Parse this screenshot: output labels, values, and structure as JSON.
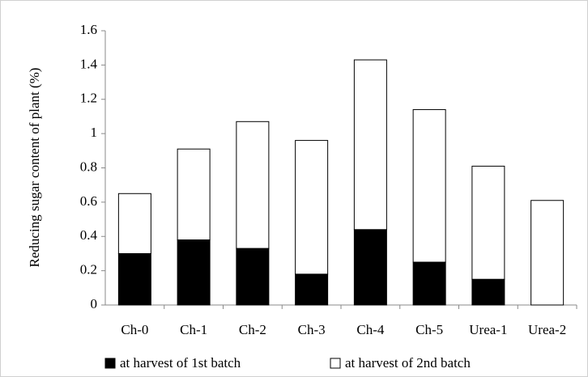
{
  "chart_data": {
    "type": "stacked_bar",
    "y_axis_label": "Reducing sugar content of plant (%)",
    "categories": [
      "Ch-0",
      "Ch-1",
      "Ch-2",
      "Ch-3",
      "Ch-4",
      "Ch-5",
      "Urea-1",
      "Urea-2"
    ],
    "series": [
      {
        "name": "at harvest of 1st batch",
        "color": "#000000",
        "values": [
          0.3,
          0.38,
          0.33,
          0.18,
          0.44,
          0.25,
          0.15,
          0
        ]
      },
      {
        "name": "at harvest of 2nd batch",
        "color": "#ffffff",
        "values": [
          0.35,
          0.53,
          0.74,
          0.78,
          0.99,
          0.89,
          0.66,
          0.61
        ]
      }
    ],
    "ylim": [
      0,
      1.6
    ],
    "yticks": [
      0,
      0.2,
      0.4,
      0.6,
      0.8,
      1,
      1.2,
      1.4,
      1.6
    ],
    "grid": false,
    "legend": "bottom"
  }
}
